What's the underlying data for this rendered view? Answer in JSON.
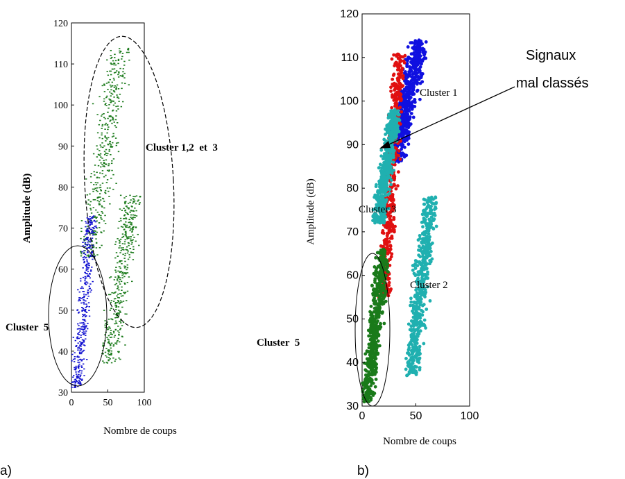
{
  "chart_data": [
    {
      "type": "scatter",
      "panel_label": "a)",
      "xlabel": "Nombre de coups",
      "ylabel": "Amplitude (dB)",
      "xlim": [
        0,
        100
      ],
      "ylim": [
        30,
        120
      ],
      "xticks": [
        0,
        50,
        100
      ],
      "yticks": [
        30,
        40,
        50,
        60,
        70,
        80,
        90,
        100,
        110,
        120
      ],
      "annotations": [
        "Cluster 1,2  et  3",
        "Cluster  5"
      ],
      "series": [
        {
          "color": "#1a7a1a",
          "region": "upper band",
          "x_range": [
            12,
            80
          ],
          "y_range": [
            63,
            114
          ]
        },
        {
          "color": "#1a7a1a",
          "region": "lower band",
          "x_range": [
            40,
            95
          ],
          "y_range": [
            37,
            78
          ]
        },
        {
          "color": "#1010d0",
          "region": "low counts",
          "x_range": [
            0,
            35
          ],
          "y_range": [
            31,
            73
          ]
        }
      ]
    },
    {
      "type": "scatter",
      "panel_label": "b)",
      "xlabel": "Nombre de coups",
      "ylabel": "Amplitude (dB)",
      "xlim": [
        0,
        100
      ],
      "ylim": [
        30,
        120
      ],
      "xticks": [
        0,
        50,
        100
      ],
      "yticks": [
        30,
        40,
        50,
        60,
        70,
        80,
        90,
        100,
        110,
        120
      ],
      "annotations": [
        "Cluster 1",
        "Cluster 3",
        "Cluster 2",
        "Cluster  5",
        "Signaux",
        "mal classés"
      ],
      "series": [
        {
          "name": "Cluster 1",
          "color": "#1010e0",
          "x_range": [
            25,
            60
          ],
          "y_range": [
            86,
            114
          ]
        },
        {
          "name": "Cluster 3",
          "color": "#e01010",
          "x_range": [
            15,
            40
          ],
          "y_range": [
            55,
            111
          ]
        },
        {
          "name": "Cluster 3",
          "color": "#20b0b0",
          "x_range": [
            10,
            35
          ],
          "y_range": [
            72,
            98
          ]
        },
        {
          "name": "Cluster 2",
          "color": "#20b0b0",
          "x_range": [
            40,
            70
          ],
          "y_range": [
            37,
            78
          ]
        },
        {
          "name": "Cluster  5",
          "color": "#1a7a1a",
          "x_range": [
            0,
            25
          ],
          "y_range": [
            31,
            66
          ]
        }
      ]
    }
  ]
}
